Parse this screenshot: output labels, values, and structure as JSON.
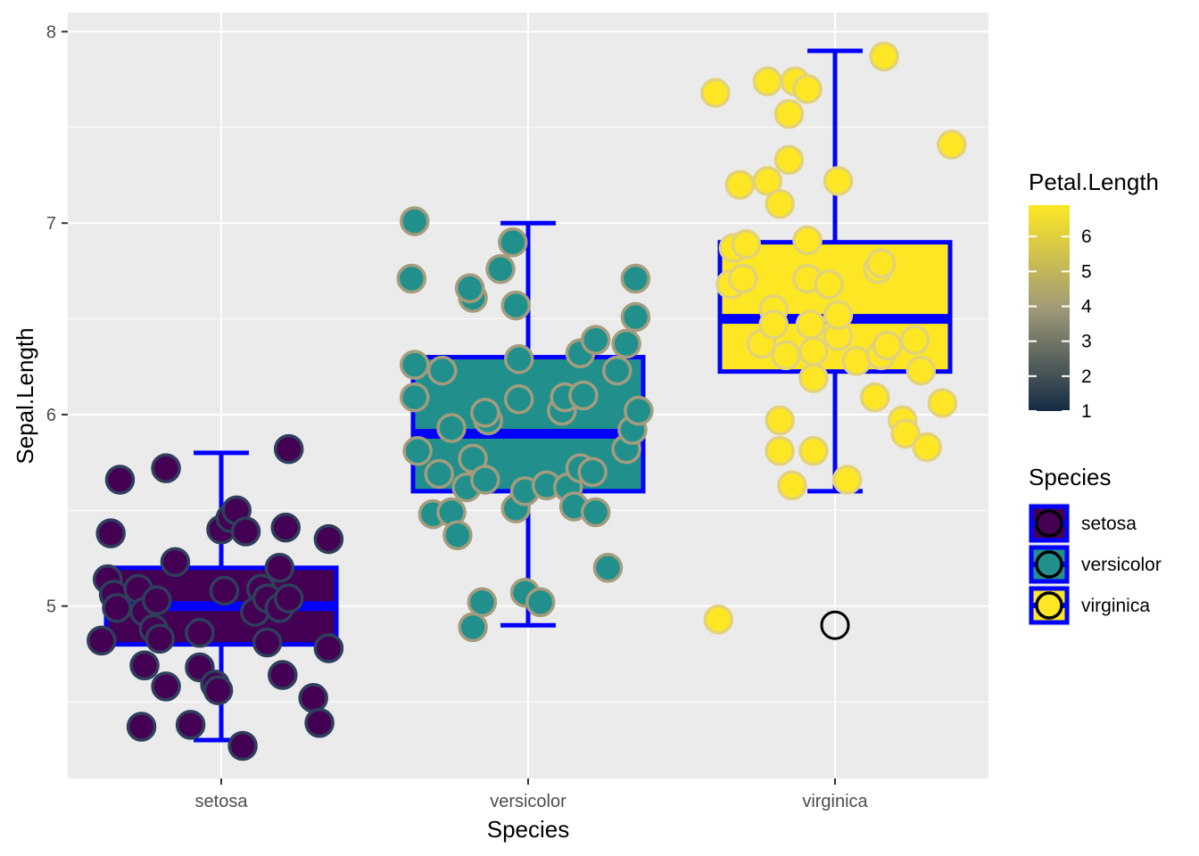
{
  "chart_data": {
    "type": "boxplot-jitter",
    "xlabel": "Species",
    "ylabel": "Sepal.Length",
    "categories": [
      "setosa",
      "versicolor",
      "virginica"
    ],
    "ylim": [
      4.1,
      8.1
    ],
    "yticks": [
      5,
      6,
      7,
      8
    ],
    "grid": true,
    "panel_background": "#EBEBEB",
    "box_outline_color": "#0000FF",
    "fill_colors": {
      "setosa": "#440154",
      "versicolor": "#21908C",
      "virginica": "#FDE725"
    },
    "boxes": [
      {
        "category": "setosa",
        "whisker_low": 4.3,
        "q1": 4.8,
        "median": 5.0,
        "q3": 5.2,
        "whisker_high": 5.8,
        "outliers": []
      },
      {
        "category": "versicolor",
        "whisker_low": 4.9,
        "q1": 5.6,
        "median": 5.9,
        "q3": 6.3,
        "whisker_high": 7.0,
        "outliers": []
      },
      {
        "category": "virginica",
        "whisker_low": 5.6,
        "q1": 6.225,
        "median": 6.5,
        "q3": 6.9,
        "whisker_high": 7.9,
        "outliers": [
          4.9
        ]
      }
    ],
    "points": [
      {
        "category": "setosa",
        "x_offset": -0.37,
        "y": 5.14
      },
      {
        "category": "setosa",
        "x_offset": -0.39,
        "y": 4.82
      },
      {
        "category": "setosa",
        "x_offset": -0.36,
        "y": 5.38
      },
      {
        "category": "setosa",
        "x_offset": -0.33,
        "y": 5.66
      },
      {
        "category": "setosa",
        "x_offset": -0.35,
        "y": 5.06
      },
      {
        "category": "setosa",
        "x_offset": -0.34,
        "y": 4.99
      },
      {
        "category": "setosa",
        "x_offset": -0.25,
        "y": 4.69
      },
      {
        "category": "setosa",
        "x_offset": -0.27,
        "y": 5.09
      },
      {
        "category": "setosa",
        "x_offset": -0.25,
        "y": 4.97
      },
      {
        "category": "setosa",
        "x_offset": -0.21,
        "y": 5.03
      },
      {
        "category": "setosa",
        "x_offset": -0.22,
        "y": 4.88
      },
      {
        "category": "setosa",
        "x_offset": -0.2,
        "y": 4.83
      },
      {
        "category": "setosa",
        "x_offset": -0.18,
        "y": 4.58
      },
      {
        "category": "setosa",
        "x_offset": -0.26,
        "y": 4.37
      },
      {
        "category": "setosa",
        "x_offset": -0.15,
        "y": 5.23
      },
      {
        "category": "setosa",
        "x_offset": -0.18,
        "y": 5.72
      },
      {
        "category": "setosa",
        "x_offset": -0.1,
        "y": 4.38
      },
      {
        "category": "setosa",
        "x_offset": -0.07,
        "y": 4.86
      },
      {
        "category": "setosa",
        "x_offset": -0.07,
        "y": 4.68
      },
      {
        "category": "setosa",
        "x_offset": -0.02,
        "y": 4.59
      },
      {
        "category": "setosa",
        "x_offset": 0.01,
        "y": 5.08
      },
      {
        "category": "setosa",
        "x_offset": -0.01,
        "y": 4.56
      },
      {
        "category": "setosa",
        "x_offset": 0.0,
        "y": 5.4
      },
      {
        "category": "setosa",
        "x_offset": 0.03,
        "y": 5.46
      },
      {
        "category": "setosa",
        "x_offset": 0.05,
        "y": 5.5
      },
      {
        "category": "setosa",
        "x_offset": 0.08,
        "y": 5.39
      },
      {
        "category": "setosa",
        "x_offset": 0.07,
        "y": 4.27
      },
      {
        "category": "setosa",
        "x_offset": 0.13,
        "y": 5.09
      },
      {
        "category": "setosa",
        "x_offset": 0.11,
        "y": 4.97
      },
      {
        "category": "setosa",
        "x_offset": 0.15,
        "y": 5.04
      },
      {
        "category": "setosa",
        "x_offset": 0.15,
        "y": 4.81
      },
      {
        "category": "setosa",
        "x_offset": 0.2,
        "y": 4.64
      },
      {
        "category": "setosa",
        "x_offset": 0.19,
        "y": 5.2
      },
      {
        "category": "setosa",
        "x_offset": 0.19,
        "y": 4.99
      },
      {
        "category": "setosa",
        "x_offset": 0.22,
        "y": 5.04
      },
      {
        "category": "setosa",
        "x_offset": 0.21,
        "y": 5.41
      },
      {
        "category": "setosa",
        "x_offset": 0.22,
        "y": 5.82
      },
      {
        "category": "setosa",
        "x_offset": 0.3,
        "y": 4.52
      },
      {
        "category": "setosa",
        "x_offset": 0.32,
        "y": 4.39
      },
      {
        "category": "setosa",
        "x_offset": 0.35,
        "y": 5.35
      },
      {
        "category": "setosa",
        "x_offset": 0.35,
        "y": 4.78
      },
      {
        "category": "versicolor",
        "x_offset": -0.38,
        "y": 6.71
      },
      {
        "category": "versicolor",
        "x_offset": -0.37,
        "y": 6.26
      },
      {
        "category": "versicolor",
        "x_offset": -0.37,
        "y": 6.09
      },
      {
        "category": "versicolor",
        "x_offset": -0.36,
        "y": 5.81
      },
      {
        "category": "versicolor",
        "x_offset": -0.37,
        "y": 7.01
      },
      {
        "category": "versicolor",
        "x_offset": -0.31,
        "y": 5.48
      },
      {
        "category": "versicolor",
        "x_offset": -0.28,
        "y": 6.23
      },
      {
        "category": "versicolor",
        "x_offset": -0.29,
        "y": 5.69
      },
      {
        "category": "versicolor",
        "x_offset": -0.25,
        "y": 5.49
      },
      {
        "category": "versicolor",
        "x_offset": -0.25,
        "y": 5.93
      },
      {
        "category": "versicolor",
        "x_offset": -0.23,
        "y": 5.37
      },
      {
        "category": "versicolor",
        "x_offset": -0.18,
        "y": 5.77
      },
      {
        "category": "versicolor",
        "x_offset": -0.18,
        "y": 6.61
      },
      {
        "category": "versicolor",
        "x_offset": -0.19,
        "y": 6.66
      },
      {
        "category": "versicolor",
        "x_offset": -0.2,
        "y": 5.62
      },
      {
        "category": "versicolor",
        "x_offset": -0.14,
        "y": 5.66
      },
      {
        "category": "versicolor",
        "x_offset": -0.15,
        "y": 5.02
      },
      {
        "category": "versicolor",
        "x_offset": -0.18,
        "y": 4.89
      },
      {
        "category": "versicolor",
        "x_offset": -0.13,
        "y": 5.97
      },
      {
        "category": "versicolor",
        "x_offset": -0.14,
        "y": 6.01
      },
      {
        "category": "versicolor",
        "x_offset": -0.09,
        "y": 6.76
      },
      {
        "category": "versicolor",
        "x_offset": -0.05,
        "y": 6.9
      },
      {
        "category": "versicolor",
        "x_offset": -0.04,
        "y": 6.57
      },
      {
        "category": "versicolor",
        "x_offset": -0.03,
        "y": 6.29
      },
      {
        "category": "versicolor",
        "x_offset": -0.03,
        "y": 6.08
      },
      {
        "category": "versicolor",
        "x_offset": -0.04,
        "y": 5.51
      },
      {
        "category": "versicolor",
        "x_offset": -0.01,
        "y": 5.6
      },
      {
        "category": "versicolor",
        "x_offset": -0.01,
        "y": 5.07
      },
      {
        "category": "versicolor",
        "x_offset": 0.04,
        "y": 5.02
      },
      {
        "category": "versicolor",
        "x_offset": 0.06,
        "y": 5.63
      },
      {
        "category": "versicolor",
        "x_offset": 0.11,
        "y": 6.02
      },
      {
        "category": "versicolor",
        "x_offset": 0.12,
        "y": 6.09
      },
      {
        "category": "versicolor",
        "x_offset": 0.13,
        "y": 5.62
      },
      {
        "category": "versicolor",
        "x_offset": 0.15,
        "y": 5.52
      },
      {
        "category": "versicolor",
        "x_offset": 0.17,
        "y": 5.72
      },
      {
        "category": "versicolor",
        "x_offset": 0.18,
        "y": 6.1
      },
      {
        "category": "versicolor",
        "x_offset": 0.17,
        "y": 6.32
      },
      {
        "category": "versicolor",
        "x_offset": 0.22,
        "y": 6.39
      },
      {
        "category": "versicolor",
        "x_offset": 0.21,
        "y": 5.7
      },
      {
        "category": "versicolor",
        "x_offset": 0.22,
        "y": 5.49
      },
      {
        "category": "versicolor",
        "x_offset": 0.26,
        "y": 5.2
      },
      {
        "category": "versicolor",
        "x_offset": 0.29,
        "y": 6.23
      },
      {
        "category": "versicolor",
        "x_offset": 0.32,
        "y": 6.37
      },
      {
        "category": "versicolor",
        "x_offset": 0.32,
        "y": 5.82
      },
      {
        "category": "versicolor",
        "x_offset": 0.34,
        "y": 5.92
      },
      {
        "category": "versicolor",
        "x_offset": 0.35,
        "y": 6.51
      },
      {
        "category": "versicolor",
        "x_offset": 0.35,
        "y": 6.71
      },
      {
        "category": "versicolor",
        "x_offset": 0.36,
        "y": 6.02
      },
      {
        "category": "virginica",
        "x_offset": -0.39,
        "y": 7.68
      },
      {
        "category": "virginica",
        "x_offset": -0.38,
        "y": 4.93
      },
      {
        "category": "virginica",
        "x_offset": -0.34,
        "y": 6.68
      },
      {
        "category": "virginica",
        "x_offset": -0.33,
        "y": 6.87
      },
      {
        "category": "virginica",
        "x_offset": -0.31,
        "y": 7.2
      },
      {
        "category": "virginica",
        "x_offset": -0.3,
        "y": 6.71
      },
      {
        "category": "virginica",
        "x_offset": -0.29,
        "y": 6.89
      },
      {
        "category": "virginica",
        "x_offset": -0.24,
        "y": 6.37
      },
      {
        "category": "virginica",
        "x_offset": -0.22,
        "y": 7.74
      },
      {
        "category": "virginica",
        "x_offset": -0.22,
        "y": 7.22
      },
      {
        "category": "virginica",
        "x_offset": -0.2,
        "y": 6.55
      },
      {
        "category": "virginica",
        "x_offset": -0.2,
        "y": 6.47
      },
      {
        "category": "virginica",
        "x_offset": -0.18,
        "y": 7.1
      },
      {
        "category": "virginica",
        "x_offset": -0.18,
        "y": 5.81
      },
      {
        "category": "virginica",
        "x_offset": -0.18,
        "y": 5.97
      },
      {
        "category": "virginica",
        "x_offset": -0.16,
        "y": 6.31
      },
      {
        "category": "virginica",
        "x_offset": -0.15,
        "y": 7.57
      },
      {
        "category": "virginica",
        "x_offset": -0.15,
        "y": 7.33
      },
      {
        "category": "virginica",
        "x_offset": -0.13,
        "y": 7.74
      },
      {
        "category": "virginica",
        "x_offset": -0.14,
        "y": 5.63
      },
      {
        "category": "virginica",
        "x_offset": -0.09,
        "y": 7.7
      },
      {
        "category": "virginica",
        "x_offset": -0.09,
        "y": 6.91
      },
      {
        "category": "virginica",
        "x_offset": -0.09,
        "y": 6.71
      },
      {
        "category": "virginica",
        "x_offset": -0.08,
        "y": 6.47
      },
      {
        "category": "virginica",
        "x_offset": -0.07,
        "y": 6.33
      },
      {
        "category": "virginica",
        "x_offset": -0.07,
        "y": 6.19
      },
      {
        "category": "virginica",
        "x_offset": -0.07,
        "y": 5.81
      },
      {
        "category": "virginica",
        "x_offset": -0.02,
        "y": 6.68
      },
      {
        "category": "virginica",
        "x_offset": 0.01,
        "y": 6.41
      },
      {
        "category": "virginica",
        "x_offset": 0.01,
        "y": 6.52
      },
      {
        "category": "virginica",
        "x_offset": 0.01,
        "y": 7.22
      },
      {
        "category": "virginica",
        "x_offset": 0.04,
        "y": 5.66
      },
      {
        "category": "virginica",
        "x_offset": 0.07,
        "y": 6.28
      },
      {
        "category": "virginica",
        "x_offset": 0.13,
        "y": 6.09
      },
      {
        "category": "virginica",
        "x_offset": 0.14,
        "y": 6.76
      },
      {
        "category": "virginica",
        "x_offset": 0.15,
        "y": 6.79
      },
      {
        "category": "virginica",
        "x_offset": 0.15,
        "y": 6.31
      },
      {
        "category": "virginica",
        "x_offset": 0.17,
        "y": 6.36
      },
      {
        "category": "virginica",
        "x_offset": 0.16,
        "y": 7.87
      },
      {
        "category": "virginica",
        "x_offset": 0.22,
        "y": 5.97
      },
      {
        "category": "virginica",
        "x_offset": 0.23,
        "y": 5.9
      },
      {
        "category": "virginica",
        "x_offset": 0.26,
        "y": 6.39
      },
      {
        "category": "virginica",
        "x_offset": 0.28,
        "y": 6.23
      },
      {
        "category": "virginica",
        "x_offset": 0.3,
        "y": 5.83
      },
      {
        "category": "virginica",
        "x_offset": 0.35,
        "y": 6.06
      },
      {
        "category": "virginica",
        "x_offset": 0.38,
        "y": 7.41
      }
    ],
    "legend_colorbar": {
      "title": "Petal.Length",
      "range": [
        1,
        6.9
      ],
      "ticks": [
        "6",
        "5",
        "4",
        "3",
        "2",
        "1"
      ],
      "tick_values": [
        6,
        5,
        4,
        3,
        2,
        1
      ],
      "gradient_low": "#132B43",
      "gradient_mid": "#A09A78",
      "gradient_high": "#FDE725"
    },
    "legend_species": {
      "title": "Species",
      "items": [
        {
          "label": "setosa",
          "color": "#440154"
        },
        {
          "label": "versicolor",
          "color": "#21908C"
        },
        {
          "label": "virginica",
          "color": "#FDE725"
        }
      ]
    }
  }
}
